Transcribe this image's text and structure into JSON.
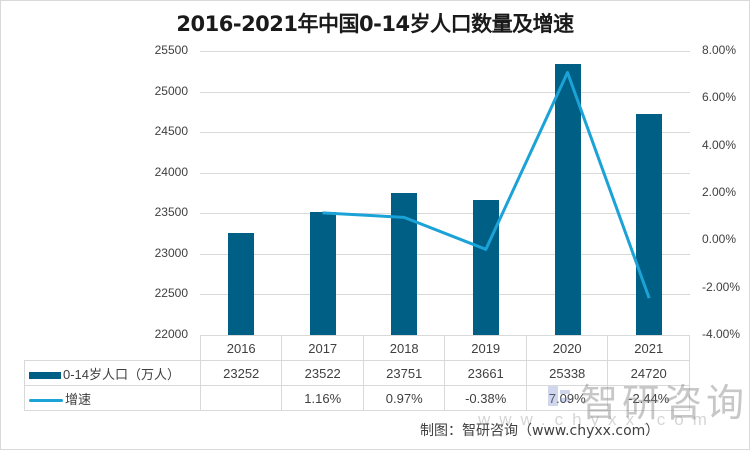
{
  "chart_data": {
    "type": "bar+line",
    "title": "2016-2021年中国0-14岁人口数量及增速",
    "categories": [
      "2016",
      "2017",
      "2018",
      "2019",
      "2020",
      "2021"
    ],
    "series": [
      {
        "name": "0-14岁人口（万人）",
        "type": "bar",
        "axis": "left",
        "color": "#005f84",
        "values": [
          23252,
          23522,
          23751,
          23661,
          25338,
          24720
        ]
      },
      {
        "name": "增速",
        "type": "line",
        "axis": "right",
        "color": "#1ba2d6",
        "values": [
          null,
          1.16,
          0.97,
          -0.38,
          7.09,
          -2.44
        ],
        "labels": [
          "",
          "1.16%",
          "0.97%",
          "-0.38%",
          "7.09%",
          "-2.44%"
        ]
      }
    ],
    "y_left": {
      "min": 22000,
      "max": 25500,
      "step": 500,
      "ticks": [
        "25500",
        "25000",
        "24500",
        "24000",
        "23500",
        "23000",
        "22500",
        "22000"
      ]
    },
    "y_right": {
      "min": -4,
      "max": 8,
      "step": 2,
      "ticks": [
        "8.00%",
        "6.00%",
        "4.00%",
        "2.00%",
        "0.00%",
        "-2.00%",
        "-4.00%"
      ]
    },
    "grid": true,
    "legend_position": "data-table",
    "xlabel": "",
    "ylabel": ""
  },
  "title": "2016-2021年中国0-14岁人口数量及增速",
  "table": {
    "row1_label": "0-14岁人口（万人）",
    "row2_label": "增速",
    "years": [
      "2016",
      "2017",
      "2018",
      "2019",
      "2020",
      "2021"
    ],
    "population": [
      "23252",
      "23522",
      "23751",
      "23661",
      "25338",
      "24720"
    ],
    "growth": [
      "",
      "1.16%",
      "0.97%",
      "-0.38%",
      "7.09%",
      "-2.44%"
    ]
  },
  "source": "制图：智研咨询（www.chyxx.com）",
  "watermark": {
    "text": "智研咨询",
    "url": "www.chyxx.com"
  }
}
